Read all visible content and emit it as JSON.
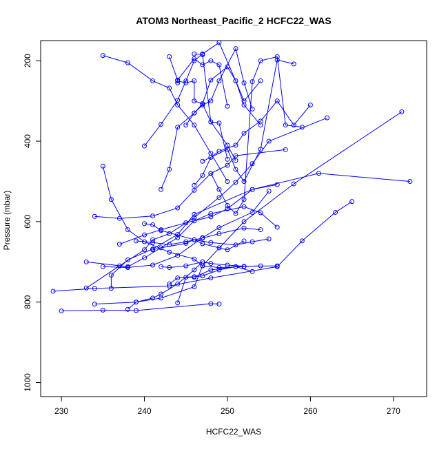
{
  "chart_data": {
    "type": "scatter",
    "title": "ATOM3 Northeast_Pacific_2 HCFC22_WAS",
    "xlabel": "HCFC22_WAS",
    "ylabel": "Pressure (mbar)",
    "xlim": [
      227.5,
      274
    ],
    "ylim": [
      1035,
      150
    ],
    "y_reversed": true,
    "x_ticks": [
      230,
      240,
      250,
      260,
      270
    ],
    "y_ticks": [
      200,
      400,
      600,
      800,
      1000
    ],
    "series_color": "#0000ff",
    "profiles": [
      {
        "x": [
          230,
          235,
          239,
          248,
          249
        ],
        "y": [
          822,
          820,
          821,
          804,
          805
        ]
      },
      {
        "x": [
          229,
          234,
          243,
          248,
          256,
          259,
          263,
          265
        ],
        "y": [
          773,
          766,
          760,
          740,
          712,
          648,
          577,
          550
        ]
      },
      {
        "x": [
          233,
          237,
          240,
          241,
          243,
          246,
          249,
          251,
          253,
          255,
          262
        ],
        "y": [
          765,
          710,
          670,
          645,
          630,
          590,
          540,
          502,
          456,
          400,
          342
        ]
      },
      {
        "x": [
          234,
          239,
          242,
          246,
          247,
          252,
          258,
          271
        ],
        "y": [
          805,
          800,
          790,
          762,
          710,
          600,
          506,
          327
        ]
      },
      {
        "x": [
          236,
          236,
          238,
          241,
          244,
          246,
          253,
          261,
          272
        ],
        "y": [
          766,
          733,
          695,
          668,
          632,
          582,
          520,
          480,
          500
        ]
      },
      {
        "x": [
          233,
          238,
          240,
          244,
          246,
          248,
          252,
          254,
          256
        ],
        "y": [
          700,
          712,
          690,
          640,
          598,
          580,
          563,
          578,
          614
        ]
      },
      {
        "x": [
          235,
          238,
          241,
          244,
          247,
          249,
          253,
          255
        ],
        "y": [
          712,
          714,
          708,
          684,
          640,
          615,
          577,
          524
        ]
      },
      {
        "x": [
          234,
          237,
          241,
          244,
          246,
          248,
          250,
          251,
          257
        ],
        "y": [
          587,
          592,
          586,
          566,
          522,
          480,
          460,
          436,
          421
        ]
      },
      {
        "x": [
          235,
          236,
          238,
          240,
          243,
          246,
          247,
          249,
          252
        ],
        "y": [
          462,
          545,
          620,
          650,
          676,
          693,
          710,
          714,
          712
        ]
      },
      {
        "x": [
          237,
          240,
          242,
          245,
          248,
          250,
          253,
          256
        ],
        "y": [
          656,
          633,
          620,
          603,
          588,
          568,
          520,
          508
        ]
      },
      {
        "x": [
          239,
          241,
          243,
          245,
          247,
          249,
          252,
          254
        ],
        "y": [
          648,
          652,
          657,
          650,
          641,
          630,
          616,
          620
        ]
      },
      {
        "x": [
          240,
          241,
          242,
          246,
          247,
          249,
          250,
          252
        ],
        "y": [
          605,
          608,
          622,
          645,
          655,
          665,
          670,
          648
        ]
      },
      {
        "x": [
          241,
          242,
          245,
          246,
          248,
          251,
          253,
          255
        ],
        "y": [
          670,
          665,
          654,
          645,
          652,
          658,
          650,
          643
        ]
      },
      {
        "x": [
          242,
          243,
          245,
          247,
          248,
          250,
          252,
          256
        ],
        "y": [
          712,
          714,
          710,
          700,
          704,
          708,
          711,
          710
        ]
      },
      {
        "x": [
          243,
          244,
          246,
          248,
          251,
          254
        ],
        "y": [
          755,
          740,
          738,
          720,
          712,
          710
        ]
      },
      {
        "x": [
          244,
          245,
          246,
          247,
          249,
          251,
          253
        ],
        "y": [
          802,
          738,
          737,
          735,
          720,
          712,
          724
        ]
      },
      {
        "x": [
          235,
          238,
          241,
          243,
          244,
          246,
          248,
          250
        ],
        "y": [
          187,
          205,
          250,
          268,
          310,
          360,
          430,
          500
        ]
      },
      {
        "x": [
          240,
          242,
          244,
          245,
          246,
          247,
          249,
          251,
          252,
          254
        ],
        "y": [
          412,
          358,
          298,
          250,
          200,
          183,
          155,
          250,
          310,
          360
        ]
      },
      {
        "x": [
          242,
          243,
          244,
          246,
          247,
          248,
          249,
          251,
          252,
          253
        ],
        "y": [
          520,
          470,
          365,
          330,
          310,
          300,
          250,
          170,
          255,
          320
        ]
      },
      {
        "x": [
          244,
          244,
          245,
          246,
          246,
          247,
          248,
          250,
          251
        ],
        "y": [
          255,
          250,
          255,
          250,
          300,
          307,
          352,
          410,
          448
        ]
      },
      {
        "x": [
          245,
          246,
          247,
          248,
          250,
          251,
          252,
          254
        ],
        "y": [
          360,
          330,
          307,
          248,
          215,
          250,
          300,
          250
        ]
      },
      {
        "x": [
          246,
          247,
          248,
          249,
          251,
          252,
          254,
          256,
          258,
          260
        ],
        "y": [
          510,
          485,
          440,
          425,
          410,
          380,
          350,
          300,
          360,
          310
        ]
      },
      {
        "x": [
          247,
          248,
          250,
          251,
          252,
          254,
          256,
          258
        ],
        "y": [
          450,
          440,
          420,
          470,
          500,
          420,
          198,
          208
        ]
      },
      {
        "x": [
          248,
          249,
          250,
          251,
          252,
          253,
          254,
          256,
          257,
          259
        ],
        "y": [
          480,
          520,
          560,
          580,
          545,
          252,
          200,
          190,
          360,
          365
        ]
      },
      {
        "x": [
          243,
          244,
          246,
          247,
          248,
          249,
          250
        ],
        "y": [
          190,
          248,
          195,
          210,
          200,
          210,
          313
        ]
      },
      {
        "x": [
          246,
          247,
          248,
          249,
          250
        ],
        "y": [
          183,
          185,
          352,
          355,
          445
        ]
      },
      {
        "x": [
          238,
          239,
          241,
          242,
          244,
          246,
          247
        ],
        "y": [
          818,
          800,
          790,
          780,
          755,
          720,
          700
        ]
      }
    ]
  }
}
